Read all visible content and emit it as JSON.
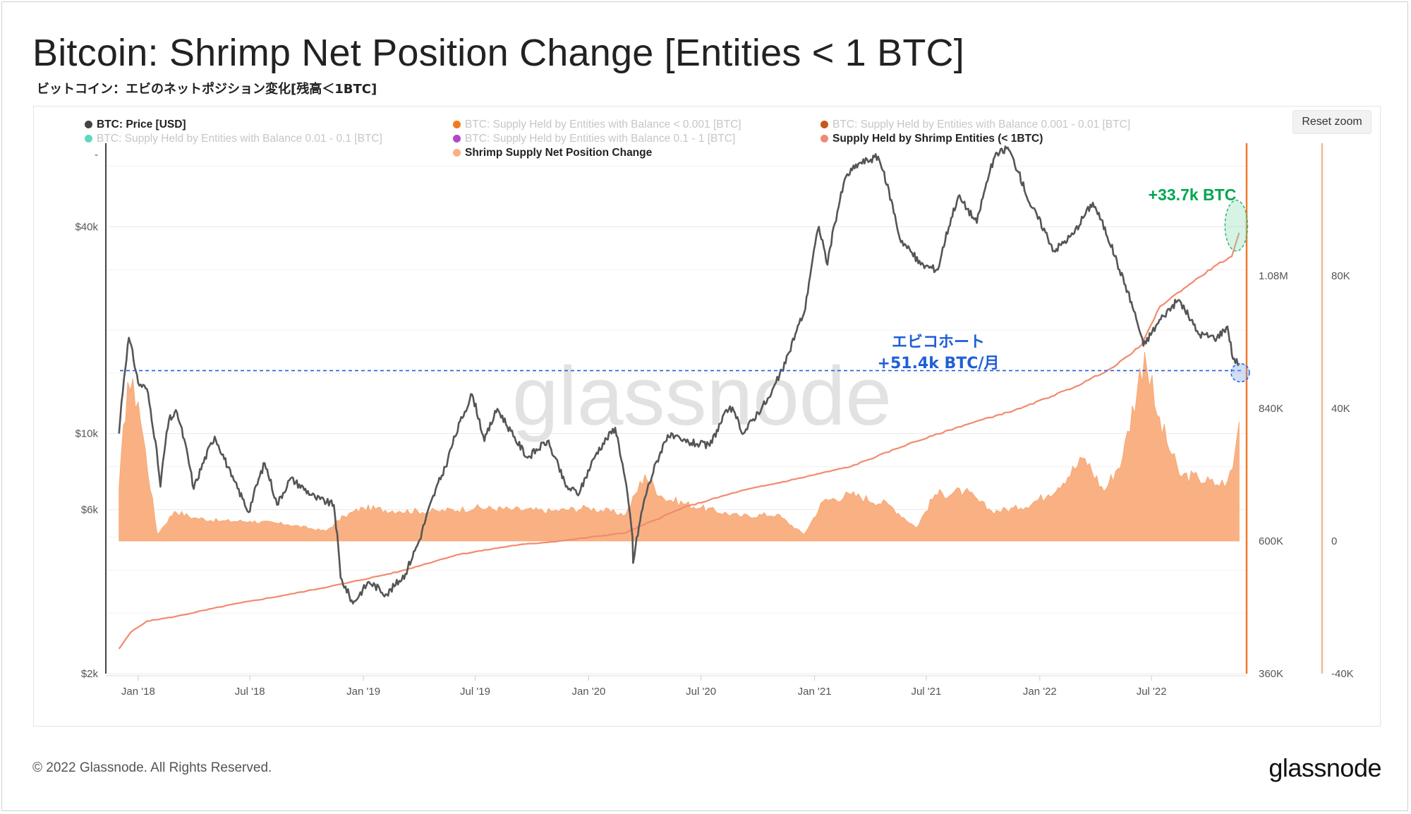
{
  "title": "Bitcoin: Shrimp Net Position Change [Entities < 1 BTC]",
  "subtitle": "ビットコイン：エビのネットポジション変化[残高＜1BTC]",
  "reset_zoom_label": "Reset zoom",
  "watermark": "glassnode",
  "copyright": "© 2022 Glassnode. All Rights Reserved.",
  "footer_logo": "glassnode",
  "colors": {
    "price": "#555555",
    "supply": "#f28a6e",
    "net_position": "#f9b183",
    "right_axis_line": "#f07a2a",
    "annotation_green": "#00a651",
    "annotation_blue": "#1f5fd6",
    "grid": "#e9e9e9"
  },
  "legend": [
    {
      "label": "BTC: Price [USD]",
      "color": "#444444",
      "state": "on"
    },
    {
      "label": "BTC: Supply Held by Entities with Balance < 0.001 [BTC]",
      "color": "#f07a1e",
      "state": "off"
    },
    {
      "label": "BTC: Supply Held by Entities with Balance 0.001 - 0.01 [BTC]",
      "color": "#c6581c",
      "state": "off"
    },
    {
      "label": "BTC: Supply Held by Entities with Balance 0.01 - 0.1 [BTC]",
      "color": "#5fd8c0",
      "state": "off"
    },
    {
      "label": "BTC: Supply Held by Entities with Balance 0.1 - 1 [BTC]",
      "color": "#b246c8",
      "state": "off"
    },
    {
      "label": "Supply Held by Shrimp Entities (< 1BTC)",
      "color": "#f08a78",
      "state": "on"
    },
    {
      "label": "Shrimp Supply Net Position Change",
      "color": "#f9b183",
      "state": "on"
    }
  ],
  "annotations": {
    "top_right": "+33.7k BTC",
    "cohort_line1": "エビコホート",
    "cohort_line2": "+51.4k BTC/月"
  },
  "chart_data": {
    "type": "line",
    "x_ticks": [
      "Jan '18",
      "Jul '18",
      "Jan '19",
      "Jul '19",
      "Jan '20",
      "Jul '20",
      "Jan '21",
      "Jul '21",
      "Jan '22",
      "Jul '22"
    ],
    "y_axes": {
      "price_usd": {
        "ticks": [
          "$40k",
          "$10k",
          "$6k",
          "$2k"
        ],
        "values": [
          40000,
          10000,
          6000,
          2000
        ],
        "scale": "log",
        "range": [
          2000,
          70000
        ]
      },
      "supply_btc": {
        "ticks": [
          "1.08M",
          "840K",
          "600K",
          "360K"
        ],
        "values": [
          1080000,
          840000,
          600000,
          360000
        ],
        "range": [
          360000,
          1320000
        ]
      },
      "net_position_btc": {
        "ticks": [
          "80K",
          "40K",
          "0",
          "-40K"
        ],
        "values": [
          80000,
          40000,
          0,
          -40000
        ],
        "range": [
          -40000,
          120000
        ]
      }
    },
    "series": [
      {
        "name": "BTC: Price [USD]",
        "axis": "price_usd",
        "points": [
          [
            "2017-12-01",
            10000
          ],
          [
            "2017-12-17",
            19000
          ],
          [
            "2018-01-01",
            14000
          ],
          [
            "2018-01-15",
            13500
          ],
          [
            "2018-02-06",
            7000
          ],
          [
            "2018-02-20",
            11000
          ],
          [
            "2018-03-05",
            11500
          ],
          [
            "2018-04-01",
            6900
          ],
          [
            "2018-05-05",
            9800
          ],
          [
            "2018-06-01",
            7500
          ],
          [
            "2018-06-29",
            5900
          ],
          [
            "2018-07-25",
            8200
          ],
          [
            "2018-08-14",
            6200
          ],
          [
            "2018-09-05",
            7400
          ],
          [
            "2018-10-15",
            6500
          ],
          [
            "2018-11-14",
            6200
          ],
          [
            "2018-11-25",
            3800
          ],
          [
            "2018-12-15",
            3200
          ],
          [
            "2019-01-10",
            3700
          ],
          [
            "2019-02-08",
            3400
          ],
          [
            "2019-03-10",
            3900
          ],
          [
            "2019-04-02",
            4900
          ],
          [
            "2019-05-14",
            8000
          ],
          [
            "2019-06-26",
            13000
          ],
          [
            "2019-07-16",
            9500
          ],
          [
            "2019-08-06",
            11800
          ],
          [
            "2019-09-01",
            9800
          ],
          [
            "2019-09-24",
            8500
          ],
          [
            "2019-10-26",
            9500
          ],
          [
            "2019-11-25",
            7000
          ],
          [
            "2019-12-17",
            6700
          ],
          [
            "2020-01-14",
            8800
          ],
          [
            "2020-02-13",
            10400
          ],
          [
            "2020-03-12",
            5000
          ],
          [
            "2020-03-13",
            4200
          ],
          [
            "2020-04-01",
            6500
          ],
          [
            "2020-05-08",
            9900
          ],
          [
            "2020-06-01",
            9500
          ],
          [
            "2020-07-15",
            9200
          ],
          [
            "2020-08-17",
            12000
          ],
          [
            "2020-09-08",
            10000
          ],
          [
            "2020-10-21",
            12800
          ],
          [
            "2020-11-15",
            16000
          ],
          [
            "2020-12-17",
            23000
          ],
          [
            "2021-01-08",
            40000
          ],
          [
            "2021-01-22",
            31000
          ],
          [
            "2021-02-21",
            56000
          ],
          [
            "2021-03-13",
            61000
          ],
          [
            "2021-04-14",
            64000
          ],
          [
            "2021-05-19",
            37000
          ],
          [
            "2021-06-22",
            31000
          ],
          [
            "2021-07-20",
            30000
          ],
          [
            "2021-08-22",
            49000
          ],
          [
            "2021-09-21",
            41000
          ],
          [
            "2021-10-20",
            64000
          ],
          [
            "2021-11-10",
            68000
          ],
          [
            "2021-12-15",
            47000
          ],
          [
            "2022-01-24",
            34000
          ],
          [
            "2022-02-24",
            38000
          ],
          [
            "2022-03-28",
            47000
          ],
          [
            "2022-05-10",
            30000
          ],
          [
            "2022-06-18",
            18000
          ],
          [
            "2022-07-20",
            22000
          ],
          [
            "2022-08-14",
            24500
          ],
          [
            "2022-09-15",
            19500
          ],
          [
            "2022-10-15",
            19000
          ],
          [
            "2022-11-01",
            20500
          ],
          [
            "2022-11-10",
            16500
          ],
          [
            "2022-11-20",
            16000
          ]
        ]
      },
      {
        "name": "Supply Held by Shrimp Entities (< 1BTC)",
        "axis": "supply_btc",
        "points": [
          [
            "2017-12-01",
            405000
          ],
          [
            "2017-12-20",
            435000
          ],
          [
            "2018-01-15",
            455000
          ],
          [
            "2018-03-01",
            463000
          ],
          [
            "2018-06-01",
            485000
          ],
          [
            "2018-09-01",
            503000
          ],
          [
            "2018-12-01",
            523000
          ],
          [
            "2019-03-01",
            545000
          ],
          [
            "2019-06-01",
            575000
          ],
          [
            "2019-09-01",
            592000
          ],
          [
            "2019-12-01",
            602000
          ],
          [
            "2020-03-01",
            615000
          ],
          [
            "2020-06-01",
            660000
          ],
          [
            "2020-09-01",
            690000
          ],
          [
            "2020-12-01",
            712000
          ],
          [
            "2021-03-01",
            735000
          ],
          [
            "2021-06-01",
            775000
          ],
          [
            "2021-09-01",
            810000
          ],
          [
            "2021-12-01",
            840000
          ],
          [
            "2022-03-01",
            880000
          ],
          [
            "2022-05-01",
            915000
          ],
          [
            "2022-06-15",
            955000
          ],
          [
            "2022-07-15",
            1025000
          ],
          [
            "2022-09-01",
            1065000
          ],
          [
            "2022-10-15",
            1100000
          ],
          [
            "2022-11-08",
            1115000
          ],
          [
            "2022-11-15",
            1140000
          ],
          [
            "2022-11-20",
            1158000
          ]
        ]
      },
      {
        "name": "Shrimp Supply Net Position Change",
        "axis": "net_position_btc",
        "points": [
          [
            "2017-12-01",
            16000
          ],
          [
            "2017-12-15",
            48000
          ],
          [
            "2018-01-01",
            42000
          ],
          [
            "2018-02-01",
            2000
          ],
          [
            "2018-03-01",
            9000
          ],
          [
            "2018-04-01",
            7000
          ],
          [
            "2018-05-15",
            6000
          ],
          [
            "2018-07-01",
            6000
          ],
          [
            "2018-09-01",
            5000
          ],
          [
            "2018-11-01",
            3000
          ],
          [
            "2018-12-01",
            7500
          ],
          [
            "2019-01-01",
            10000
          ],
          [
            "2019-03-01",
            9000
          ],
          [
            "2019-05-01",
            9000
          ],
          [
            "2019-07-01",
            10000
          ],
          [
            "2019-09-01",
            9500
          ],
          [
            "2019-11-01",
            9000
          ],
          [
            "2020-01-01",
            10000
          ],
          [
            "2020-03-01",
            8000
          ],
          [
            "2020-04-01",
            20000
          ],
          [
            "2020-05-01",
            13000
          ],
          [
            "2020-07-01",
            10000
          ],
          [
            "2020-09-01",
            7500
          ],
          [
            "2020-11-01",
            8000
          ],
          [
            "2020-12-15",
            2000
          ],
          [
            "2021-01-15",
            12000
          ],
          [
            "2021-03-01",
            14000
          ],
          [
            "2021-05-01",
            11000
          ],
          [
            "2021-06-15",
            4000
          ],
          [
            "2021-07-15",
            14000
          ],
          [
            "2021-09-01",
            15000
          ],
          [
            "2021-10-15",
            9000
          ],
          [
            "2021-12-01",
            10000
          ],
          [
            "2022-01-15",
            14000
          ],
          [
            "2022-03-15",
            25000
          ],
          [
            "2022-04-15",
            15000
          ],
          [
            "2022-05-15",
            25000
          ],
          [
            "2022-06-20",
            57000
          ],
          [
            "2022-07-10",
            38000
          ],
          [
            "2022-08-15",
            20000
          ],
          [
            "2022-09-15",
            19000
          ],
          [
            "2022-10-15",
            17000
          ],
          [
            "2022-11-01",
            18000
          ],
          [
            "2022-11-10",
            22000
          ],
          [
            "2022-11-20",
            36000
          ]
        ]
      }
    ],
    "reference_line": {
      "axis": "net_position_btc",
      "value": 51400,
      "label": "+51.4k BTC/月"
    },
    "grid": true,
    "legend_position": "top"
  }
}
